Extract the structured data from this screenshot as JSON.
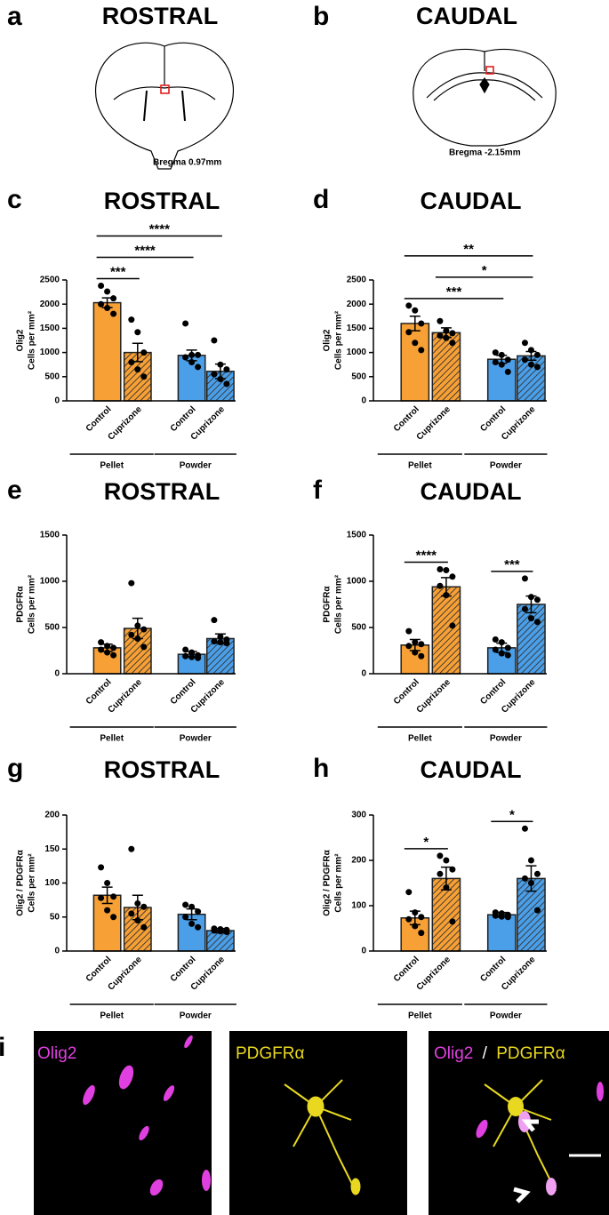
{
  "schematics": [
    {
      "panel": "a",
      "title": "ROSTRAL",
      "bregma": "Bregma 0.97mm"
    },
    {
      "panel": "b",
      "title": "CAUDAL",
      "bregma": "Bregma -2.15mm"
    }
  ],
  "chart_data": [
    {
      "type": "bar",
      "panel": "c",
      "title": "ROSTRAL",
      "y_label": [
        "Olig2",
        "Cells per mm²"
      ],
      "categories": [
        "Control",
        "Cuprizone",
        "Control",
        "Cuprizone"
      ],
      "groups": [
        "Pellet",
        "Powder"
      ],
      "values": [
        2030,
        1000,
        940,
        610
      ],
      "errors": [
        100,
        190,
        110,
        150
      ],
      "points": [
        [
          2380,
          2260,
          2120,
          2000,
          1920,
          1800
        ],
        [
          1680,
          1420,
          1000,
          800,
          650,
          500
        ],
        [
          1600,
          950,
          950,
          900,
          800,
          700
        ],
        [
          1250,
          750,
          650,
          550,
          450,
          350
        ]
      ],
      "colors": [
        "#f7a035",
        "#f7a035",
        "#4a9fe8",
        "#4a9fe8"
      ],
      "hatched": [
        false,
        true,
        false,
        true
      ],
      "ylim": [
        0,
        2500
      ],
      "yticks": [
        0,
        500,
        1000,
        1500,
        2000,
        2500
      ],
      "significance": [
        {
          "bars": [
            0,
            1
          ],
          "label": "***"
        },
        {
          "bars": [
            0,
            2
          ],
          "label": "****"
        },
        {
          "bars": [
            0,
            3
          ],
          "label": "****"
        }
      ]
    },
    {
      "type": "bar",
      "panel": "d",
      "title": "CAUDAL",
      "y_label": [
        "Olig2",
        "Cells per mm²"
      ],
      "categories": [
        "Control",
        "Cuprizone",
        "Control",
        "Cuprizone"
      ],
      "groups": [
        "Pellet",
        "Powder"
      ],
      "values": [
        1600,
        1410,
        860,
        930
      ],
      "errors": [
        150,
        100,
        80,
        90
      ],
      "points": [
        [
          1970,
          1870,
          1600,
          1420,
          1200,
          1050
        ],
        [
          1650,
          1450,
          1400,
          1350,
          1300,
          1200
        ],
        [
          1000,
          950,
          850,
          800,
          750,
          600
        ],
        [
          1200,
          1050,
          950,
          850,
          750,
          700
        ]
      ],
      "colors": [
        "#f7a035",
        "#f7a035",
        "#4a9fe8",
        "#4a9fe8"
      ],
      "hatched": [
        false,
        true,
        false,
        true
      ],
      "ylim": [
        0,
        2500
      ],
      "yticks": [
        0,
        500,
        1000,
        1500,
        2000,
        2500
      ],
      "significance": [
        {
          "bars": [
            0,
            2
          ],
          "label": "***"
        },
        {
          "bars": [
            1,
            3
          ],
          "label": "*"
        },
        {
          "bars": [
            0,
            3
          ],
          "label": "**"
        }
      ]
    },
    {
      "type": "bar",
      "panel": "e",
      "title": "ROSTRAL",
      "y_label": [
        "PDGFRα",
        "Cells per mm²"
      ],
      "categories": [
        "Control",
        "Cuprizone",
        "Control",
        "Cuprizone"
      ],
      "groups": [
        "Pellet",
        "Powder"
      ],
      "values": [
        280,
        490,
        210,
        380
      ],
      "errors": [
        40,
        110,
        30,
        50
      ],
      "points": [
        [
          340,
          300,
          280,
          260,
          230,
          200
        ],
        [
          980,
          520,
          480,
          420,
          380,
          290
        ],
        [
          260,
          230,
          200,
          190,
          180,
          170
        ],
        [
          580,
          400,
          370,
          350,
          340,
          330
        ]
      ],
      "colors": [
        "#f7a035",
        "#f7a035",
        "#4a9fe8",
        "#4a9fe8"
      ],
      "hatched": [
        false,
        true,
        false,
        true
      ],
      "ylim": [
        0,
        1500
      ],
      "yticks": [
        0,
        500,
        1000,
        1500
      ],
      "significance": []
    },
    {
      "type": "bar",
      "panel": "f",
      "title": "CAUDAL",
      "y_label": [
        "PDGFRα",
        "Cells per mm²"
      ],
      "categories": [
        "Control",
        "Cuprizone",
        "Control",
        "Cuprizone"
      ],
      "groups": [
        "Pellet",
        "Powder"
      ],
      "values": [
        310,
        940,
        280,
        750
      ],
      "errors": [
        60,
        100,
        50,
        90
      ],
      "points": [
        [
          460,
          340,
          320,
          300,
          230,
          190
        ],
        [
          1130,
          1120,
          1050,
          950,
          850,
          520
        ],
        [
          370,
          340,
          280,
          260,
          220,
          200
        ],
        [
          1030,
          830,
          800,
          700,
          600,
          560
        ]
      ],
      "colors": [
        "#f7a035",
        "#f7a035",
        "#4a9fe8",
        "#4a9fe8"
      ],
      "hatched": [
        false,
        true,
        false,
        true
      ],
      "ylim": [
        0,
        1500
      ],
      "yticks": [
        0,
        500,
        1000,
        1500
      ],
      "significance": [
        {
          "bars": [
            0,
            1
          ],
          "label": "****"
        },
        {
          "bars": [
            2,
            3
          ],
          "label": "***"
        }
      ]
    },
    {
      "type": "bar",
      "panel": "g",
      "title": "ROSTRAL",
      "y_label": [
        "Olig2 / PDGFRα",
        "Cells per mm²"
      ],
      "categories": [
        "Control",
        "Cuprizone",
        "Control",
        "Cuprizone"
      ],
      "groups": [
        "Pellet",
        "Powder"
      ],
      "values": [
        82,
        64,
        54,
        30
      ],
      "errors": [
        12,
        18,
        8,
        3
      ],
      "points": [
        [
          123,
          100,
          80,
          78,
          60,
          50
        ],
        [
          150,
          70,
          65,
          55,
          45,
          35
        ],
        [
          68,
          65,
          58,
          50,
          40,
          35
        ],
        [
          33,
          32,
          31,
          30,
          29,
          28
        ]
      ],
      "colors": [
        "#f7a035",
        "#f7a035",
        "#4a9fe8",
        "#4a9fe8"
      ],
      "hatched": [
        false,
        true,
        false,
        true
      ],
      "ylim": [
        0,
        200
      ],
      "yticks": [
        0,
        50,
        100,
        150,
        200
      ],
      "significance": []
    },
    {
      "type": "bar",
      "panel": "h",
      "title": "CAUDAL",
      "y_label": [
        "Olig2 / PDGFRα",
        "Cells per mm²"
      ],
      "categories": [
        "Control",
        "Cuprizone",
        "Control",
        "Cuprizone"
      ],
      "groups": [
        "Pellet",
        "Powder"
      ],
      "values": [
        73,
        160,
        80,
        160
      ],
      "errors": [
        15,
        25,
        5,
        28
      ],
      "points": [
        [
          130,
          85,
          75,
          70,
          55,
          40
        ],
        [
          210,
          200,
          180,
          170,
          140,
          65
        ],
        [
          85,
          83,
          80,
          78,
          76,
          75
        ],
        [
          270,
          200,
          170,
          160,
          150,
          90
        ]
      ],
      "colors": [
        "#f7a035",
        "#f7a035",
        "#4a9fe8",
        "#4a9fe8"
      ],
      "hatched": [
        false,
        true,
        false,
        true
      ],
      "ylim": [
        0,
        300
      ],
      "yticks": [
        0,
        100,
        200,
        300
      ],
      "significance": [
        {
          "bars": [
            0,
            1
          ],
          "label": "*"
        },
        {
          "bars": [
            2,
            3
          ],
          "label": "*"
        }
      ]
    }
  ],
  "micrographs": {
    "panel": "i",
    "labels": [
      "Olig2",
      "PDGFRα"
    ],
    "merge_label": [
      "Olig2",
      "/",
      "PDGFRα"
    ]
  }
}
